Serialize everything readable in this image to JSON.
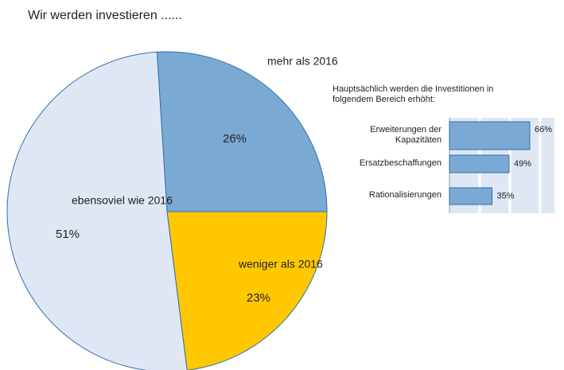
{
  "chart_data": [
    {
      "type": "pie",
      "title": "Wir werden investieren ......",
      "categories": [
        "mehr als 2016",
        "weniger als 2016",
        "ebensoviel wie 2016"
      ],
      "values": [
        26,
        23,
        51
      ],
      "value_labels": [
        "26%",
        "23%",
        "51%"
      ],
      "colors": [
        "#7aaad4",
        "#ffc800",
        "#e0e7f4"
      ]
    },
    {
      "type": "barh",
      "title": "Hauptsächlich werden die Investitionen in folgendem Bereich erhöht:",
      "categories": [
        "Erweiterungen der Kapazitäten",
        "Ersatzbeschaffungen",
        "Rationalisierungen"
      ],
      "values": [
        66,
        49,
        35
      ],
      "value_labels": [
        "66%",
        "49%",
        "35%"
      ],
      "color": "#7aaad4",
      "xlim": [
        0,
        100
      ]
    }
  ]
}
